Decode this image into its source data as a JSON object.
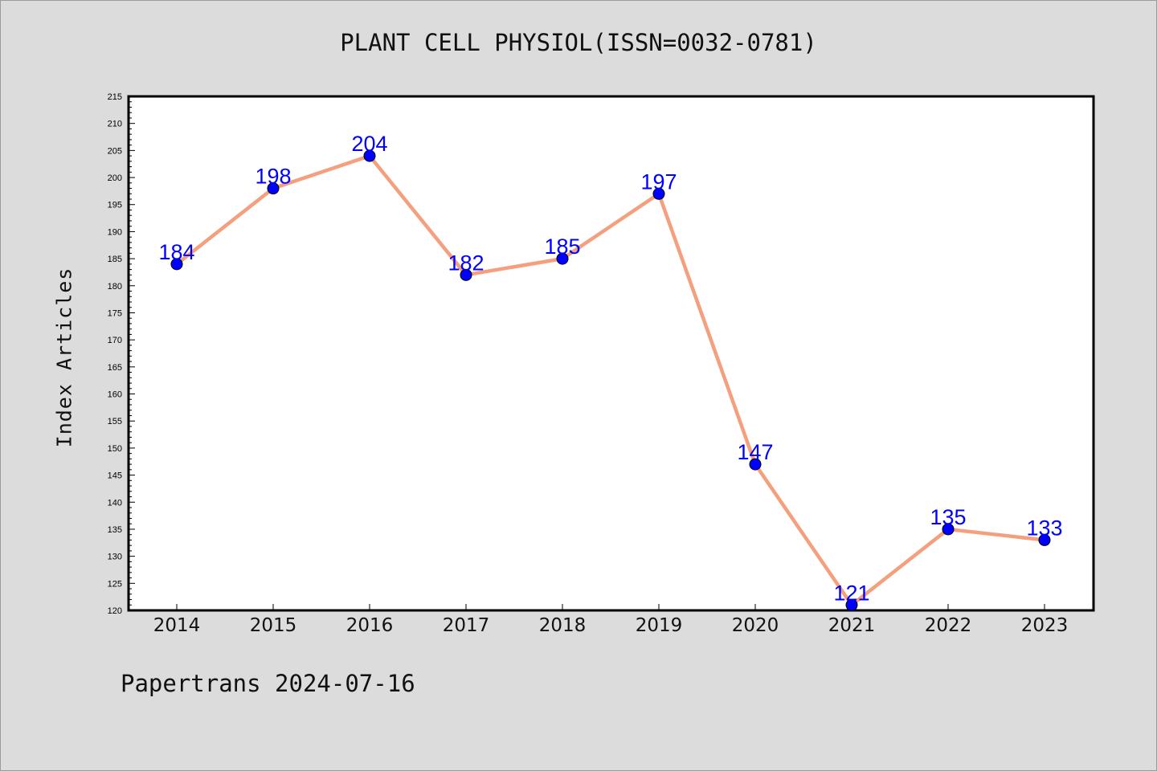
{
  "title": "PLANT CELL PHYSIOL(ISSN=0032-0781)",
  "footer": "Papertrans 2024-07-16",
  "chart_data": {
    "type": "line",
    "ylabel": "Index Articles",
    "xlabel": "",
    "categories": [
      "2014",
      "2015",
      "2016",
      "2017",
      "2018",
      "2019",
      "2020",
      "2021",
      "2022",
      "2023"
    ],
    "values": [
      184,
      198,
      204,
      182,
      185,
      197,
      147,
      121,
      135,
      133
    ],
    "ylim": [
      120,
      215
    ],
    "yticks": [
      "120",
      "125",
      "130",
      "135",
      "140",
      "145",
      "150",
      "155",
      "160",
      "165",
      "170",
      "175",
      "180",
      "185",
      "190",
      "195",
      "200",
      "205",
      "210",
      "215"
    ],
    "data_labels": [
      "184",
      "198",
      "204",
      "182",
      "185",
      "197",
      "147",
      "121",
      "135",
      "133"
    ],
    "line_color": "#f4a07e",
    "marker_color": "#0000ff",
    "label_color": "#0000ff",
    "grid": false
  }
}
